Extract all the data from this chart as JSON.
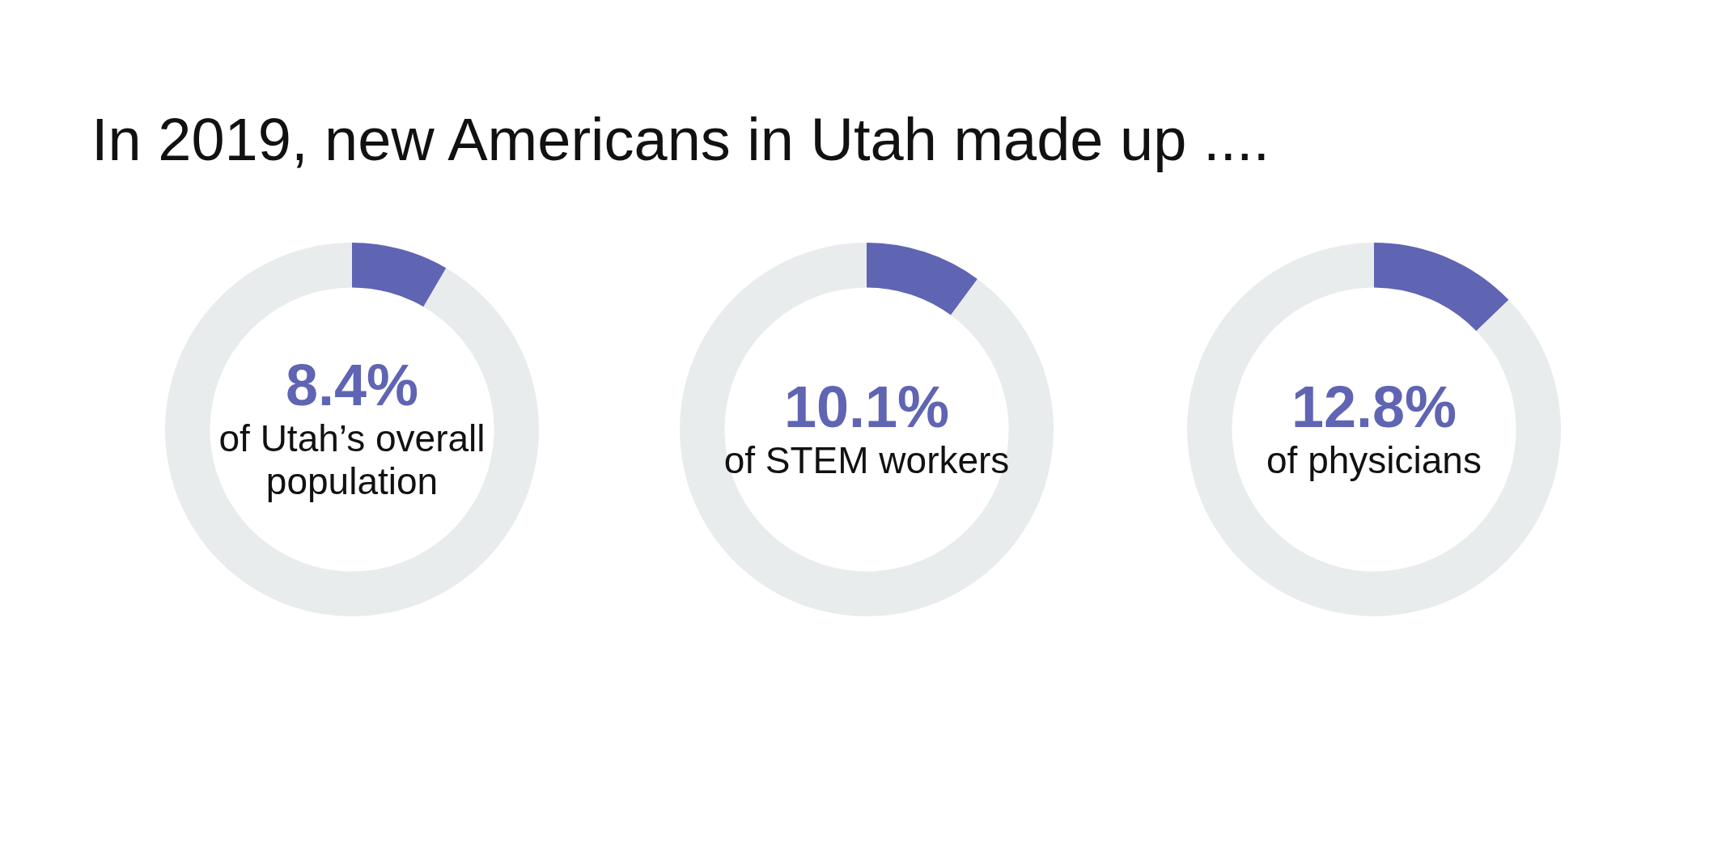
{
  "chart_data": [
    {
      "type": "donut",
      "title": "In 2019, new Americans in Utah made up ....",
      "categories": [
        "of Utah’s overall population",
        null
      ],
      "values": [
        8.4,
        91.6
      ],
      "colors": [
        "#5f64b3",
        "#e8ecec"
      ],
      "value_labels": [
        "8.4%",
        null
      ],
      "legend": false
    },
    {
      "type": "donut",
      "categories": [
        "of STEM workers",
        null
      ],
      "values": [
        10.1,
        89.9
      ],
      "colors": [
        "#5f64b3",
        "#e8ecec"
      ],
      "value_labels": [
        "10.1%",
        null
      ],
      "legend": false
    },
    {
      "type": "donut",
      "categories": [
        "of physicians",
        null
      ],
      "values": [
        12.8,
        87.2
      ],
      "colors": [
        "#5f64b3",
        "#e8ecec"
      ],
      "value_labels": [
        "12.8%",
        null
      ],
      "legend": false
    }
  ]
}
